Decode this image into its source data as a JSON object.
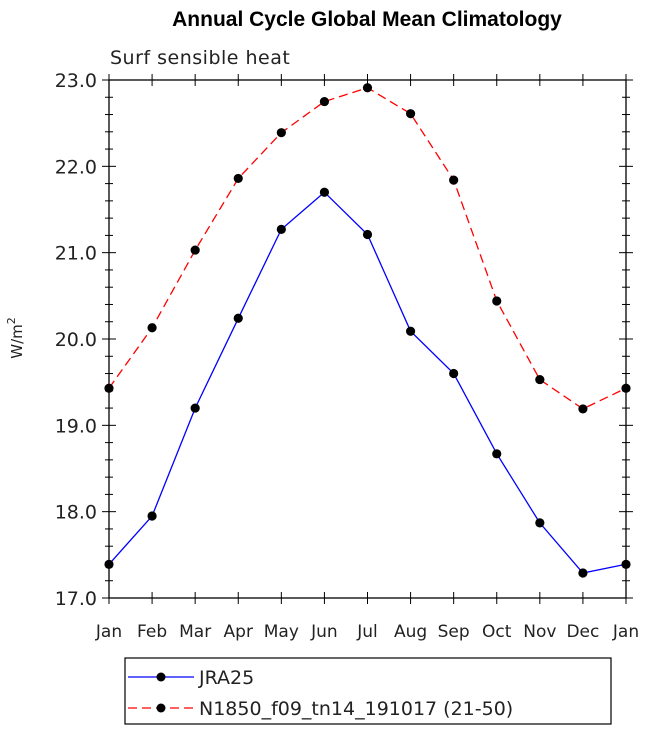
{
  "chart_data": {
    "type": "line",
    "title": "Annual Cycle Global Mean Climatology",
    "subtitle": "Surf sensible heat",
    "ylabel_base": "W/m",
    "ylabel_sup": "2",
    "xlabel": "",
    "categories": [
      "Jan",
      "Feb",
      "Mar",
      "Apr",
      "May",
      "Jun",
      "Jul",
      "Aug",
      "Sep",
      "Oct",
      "Nov",
      "Dec",
      "Jan"
    ],
    "ylim": [
      17.0,
      23.0
    ],
    "yticks": [
      "17.0",
      "18.0",
      "19.0",
      "20.0",
      "21.0",
      "22.0",
      "23.0"
    ],
    "grid": false,
    "legend_position": "bottom",
    "series": [
      {
        "name": "JRA25",
        "color": "#0000ff",
        "dash": "solid",
        "values": [
          17.39,
          17.95,
          19.2,
          20.24,
          21.27,
          21.7,
          21.21,
          20.09,
          19.6,
          18.67,
          17.87,
          17.29,
          17.39
        ]
      },
      {
        "name": "N1850_f09_tn14_191017 (21-50)",
        "color": "#ff0000",
        "dash": "dashed",
        "values": [
          19.43,
          20.13,
          21.03,
          21.86,
          22.39,
          22.75,
          22.91,
          22.61,
          21.84,
          20.44,
          19.53,
          19.19,
          19.43
        ]
      }
    ]
  }
}
